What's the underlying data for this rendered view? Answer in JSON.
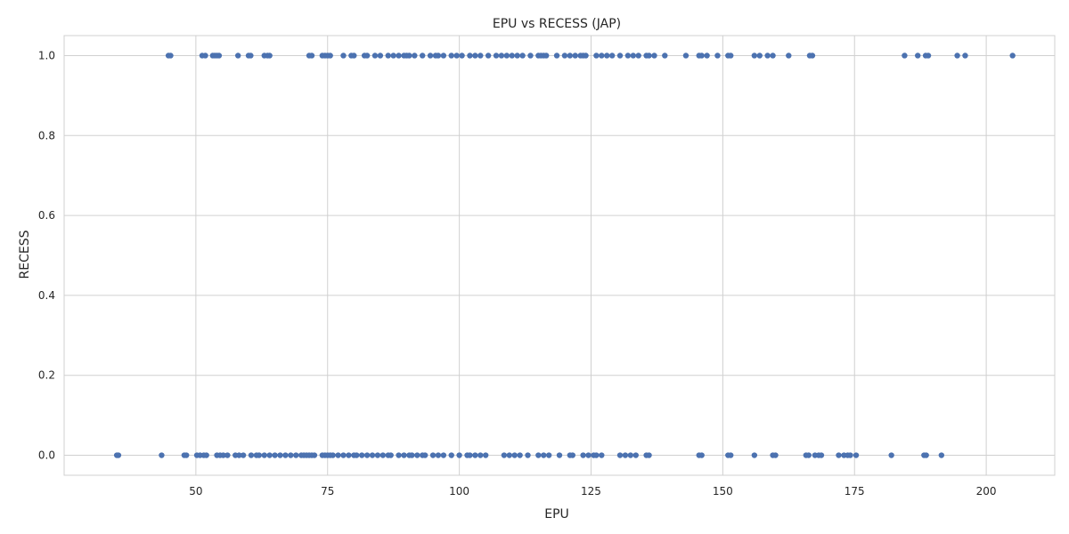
{
  "chart_data": {
    "type": "scatter",
    "title": "EPU vs RECESS (JAP)",
    "xlabel": "EPU",
    "ylabel": "RECESS",
    "xlim": [
      25,
      213
    ],
    "ylim": [
      -0.05,
      1.05
    ],
    "xticks": [
      50,
      75,
      100,
      125,
      150,
      175,
      200
    ],
    "xtick_labels": [
      "50",
      "75",
      "100",
      "125",
      "150",
      "175",
      "200"
    ],
    "yticks": [
      0.0,
      0.2,
      0.4,
      0.6,
      0.8,
      1.0
    ],
    "ytick_labels": [
      "0.0",
      "0.2",
      "0.4",
      "0.6",
      "0.8",
      "1.0"
    ],
    "grid": true,
    "colors": {
      "points": "#4c72b0",
      "grid": "#d0d0d0",
      "text": "#262626"
    },
    "series": [
      {
        "y": 1,
        "x": [
          44.8,
          45.2,
          51.2,
          51.8,
          53.2,
          53.6,
          54.0,
          54.4,
          58.0,
          60.0,
          60.4,
          63.0,
          63.6,
          64.0,
          71.5,
          72.0,
          74.0,
          74.5,
          75.0,
          75.5,
          78.0,
          79.5,
          80.0,
          82.0,
          82.5,
          84.0,
          85.0,
          86.5,
          87.5,
          88.5,
          89.5,
          90.0,
          90.5,
          91.5,
          93.0,
          94.5,
          95.5,
          96.0,
          97.0,
          98.5,
          99.5,
          100.5,
          102.0,
          103.0,
          104.0,
          105.5,
          107.0,
          108.0,
          109.0,
          110.0,
          111.0,
          112.0,
          113.5,
          115.0,
          115.5,
          116.0,
          116.5,
          118.5,
          120.0,
          121.0,
          122.0,
          123.0,
          123.5,
          124.0,
          126.0,
          127.0,
          128.0,
          129.0,
          130.5,
          132.0,
          133.0,
          134.0,
          135.5,
          136.0,
          137.0,
          139.0,
          143.0,
          145.5,
          146.0,
          147.0,
          149.0,
          151.0,
          151.5,
          156.0,
          157.0,
          158.5,
          159.5,
          162.5,
          166.5,
          167.0,
          184.5,
          187.0,
          188.5,
          189.0,
          194.5,
          196.0,
          205.0
        ]
      },
      {
        "y": 0,
        "x": [
          35.0,
          35.3,
          43.5,
          47.8,
          48.2,
          50.2,
          50.8,
          51.5,
          52.0,
          54.0,
          54.6,
          55.2,
          56.0,
          57.5,
          58.2,
          59.0,
          60.5,
          61.5,
          62.0,
          63.0,
          64.0,
          65.0,
          66.0,
          67.0,
          68.0,
          69.0,
          70.0,
          70.5,
          71.0,
          71.5,
          72.0,
          72.5,
          74.0,
          74.5,
          75.0,
          75.5,
          76.0,
          77.0,
          78.0,
          79.0,
          80.0,
          80.5,
          81.5,
          82.5,
          83.5,
          84.5,
          85.5,
          86.5,
          87.0,
          88.5,
          89.5,
          90.5,
          91.0,
          92.0,
          93.0,
          93.5,
          95.0,
          96.0,
          97.0,
          98.5,
          100.0,
          101.5,
          102.0,
          103.0,
          104.0,
          105.0,
          108.5,
          109.5,
          110.5,
          111.5,
          113.0,
          115.0,
          116.0,
          117.0,
          119.0,
          121.0,
          121.5,
          123.5,
          124.5,
          125.5,
          126.0,
          127.0,
          130.5,
          131.5,
          132.5,
          133.5,
          135.5,
          136.0,
          145.5,
          146.0,
          151.0,
          151.5,
          156.0,
          159.5,
          160.0,
          165.8,
          166.3,
          167.5,
          168.2,
          168.7,
          172.0,
          173.0,
          173.7,
          174.2,
          175.3,
          182.0,
          188.2,
          188.6,
          191.5
        ]
      }
    ]
  }
}
